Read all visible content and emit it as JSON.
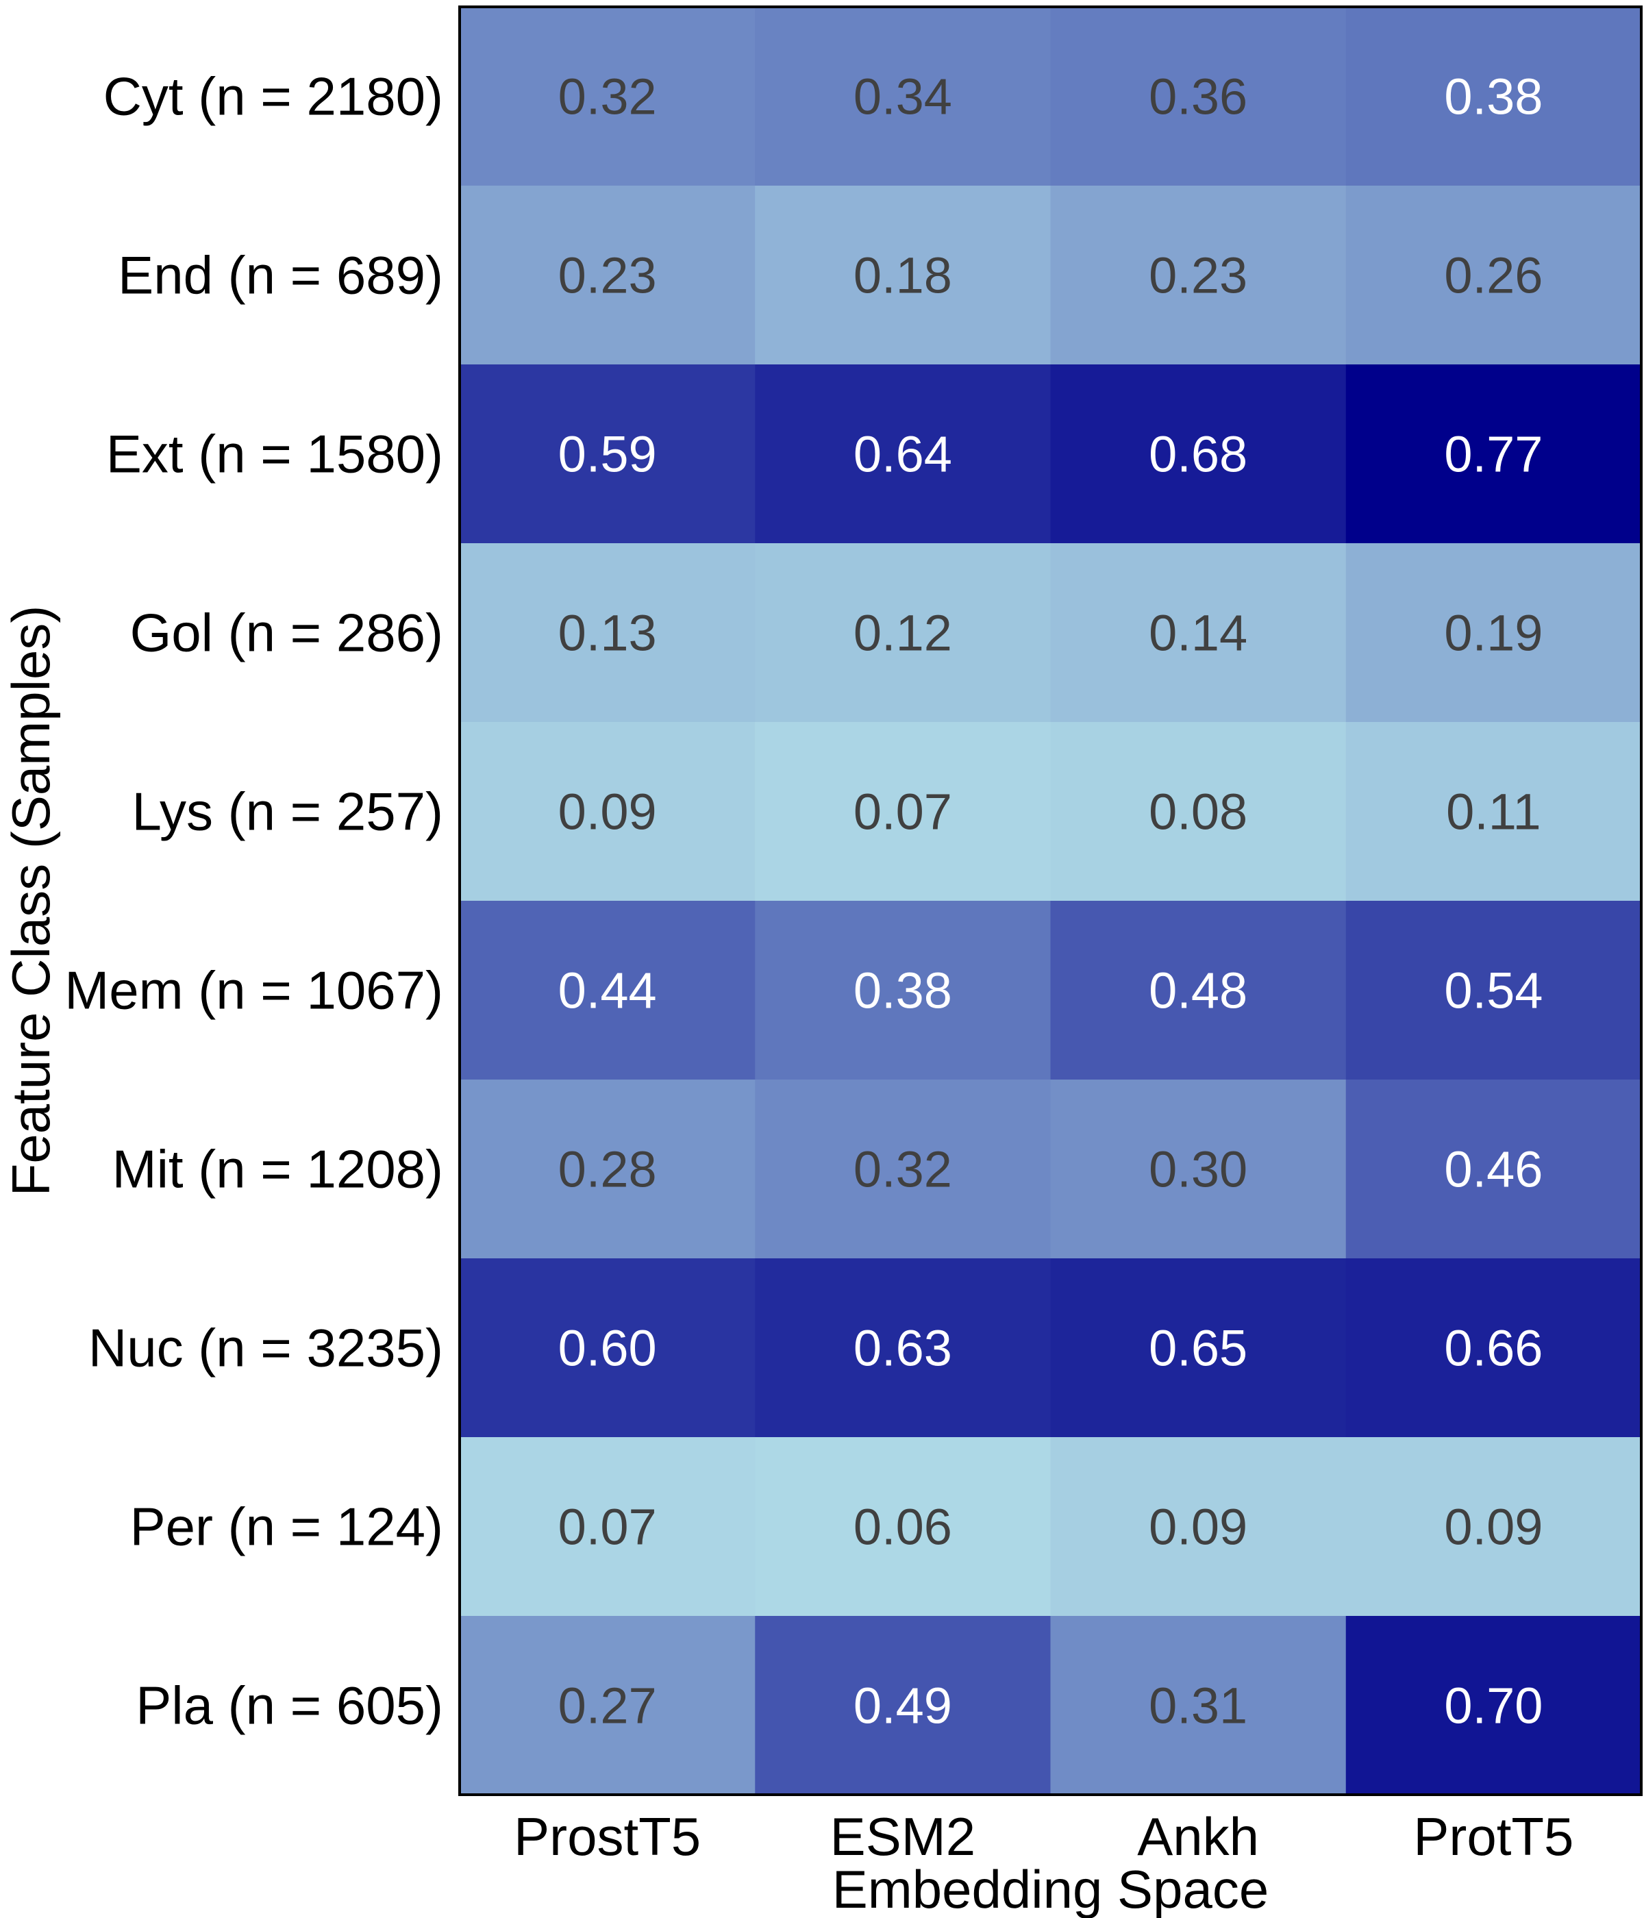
{
  "chart_data": {
    "type": "heatmap",
    "title": "",
    "xlabel": "Embedding Space",
    "ylabel": "Feature Class (Samples)",
    "x_categories": [
      "ProstT5",
      "ESM2",
      "Ankh",
      "ProtT5"
    ],
    "y_categories": [
      "Cyt (n = 2180)",
      "End (n = 689)",
      "Ext (n = 1580)",
      "Gol (n = 286)",
      "Lys (n = 257)",
      "Mem (n = 1067)",
      "Mit (n = 1208)",
      "Nuc (n = 3235)",
      "Per (n = 124)",
      "Pla (n = 605)"
    ],
    "values": [
      [
        0.32,
        0.34,
        0.36,
        0.38
      ],
      [
        0.23,
        0.18,
        0.23,
        0.26
      ],
      [
        0.59,
        0.64,
        0.68,
        0.77
      ],
      [
        0.13,
        0.12,
        0.14,
        0.19
      ],
      [
        0.09,
        0.07,
        0.08,
        0.11
      ],
      [
        0.44,
        0.38,
        0.48,
        0.54
      ],
      [
        0.28,
        0.32,
        0.3,
        0.46
      ],
      [
        0.6,
        0.63,
        0.65,
        0.66
      ],
      [
        0.07,
        0.06,
        0.09,
        0.09
      ],
      [
        0.27,
        0.49,
        0.31,
        0.7
      ]
    ],
    "value_labels": [
      [
        "0.32",
        "0.34",
        "0.36",
        "0.38"
      ],
      [
        "0.23",
        "0.18",
        "0.23",
        "0.26"
      ],
      [
        "0.59",
        "0.64",
        "0.68",
        "0.77"
      ],
      [
        "0.13",
        "0.12",
        "0.14",
        "0.19"
      ],
      [
        "0.09",
        "0.07",
        "0.08",
        "0.11"
      ],
      [
        "0.44",
        "0.38",
        "0.48",
        "0.54"
      ],
      [
        "0.28",
        "0.32",
        "0.30",
        "0.46"
      ],
      [
        "0.60",
        "0.63",
        "0.65",
        "0.66"
      ],
      [
        "0.07",
        "0.06",
        "0.09",
        "0.09"
      ],
      [
        "0.27",
        "0.49",
        "0.31",
        "0.70"
      ]
    ],
    "value_range": [
      0.06,
      0.77
    ],
    "colorscale": [
      "#add8e6",
      "#00008b"
    ],
    "label_colors": {
      "light_cells": "#404040",
      "dark_cells": "#ffffff"
    },
    "legend": "none",
    "grid": false
  }
}
